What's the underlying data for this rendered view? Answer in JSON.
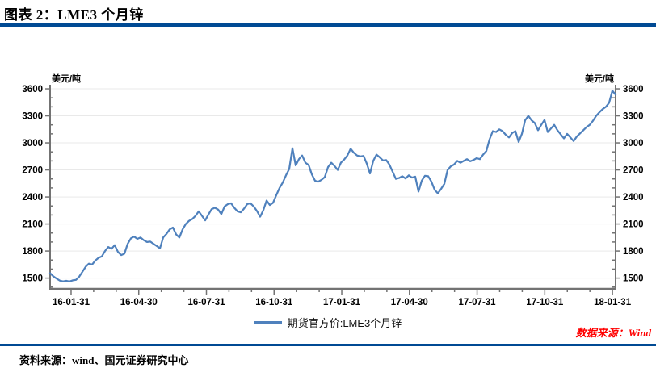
{
  "page": {
    "title": "图表 2：LME3 个月锌",
    "source_note_right": "数据来源：Wind",
    "source_note_bottom": "资料来源：wind、国元证券研究中心"
  },
  "colors": {
    "accent_rule": "#004a94",
    "series_line": "#4f81bd",
    "source_red": "#ff0000",
    "axis": "#737373",
    "gridline": "#e9e9e9",
    "tick_label": "#000000"
  },
  "chart_data": {
    "type": "line",
    "title": "",
    "unit_label_left": "美元/吨",
    "unit_label_right": "美元/吨",
    "grid": "horizontal-major",
    "legend_position": "bottom-center",
    "y_axis": {
      "min": 1380,
      "max": 3645,
      "major_ticks": [
        1500,
        1800,
        2100,
        2400,
        2700,
        3000,
        3300,
        3600
      ],
      "minor_step": 100,
      "mirrored_right": true
    },
    "x_axis": {
      "domain_months": [
        -0.93,
        24.14
      ],
      "minor_step_months": 1,
      "labels": [
        "16-01-31",
        "16-04-30",
        "16-07-31",
        "16-10-31",
        "17-01-31",
        "17-04-30",
        "17-07-31",
        "17-10-31",
        "18-01-31"
      ],
      "label_positions_months": [
        0,
        3,
        6,
        9,
        12,
        15,
        18,
        21,
        24
      ]
    },
    "series": [
      {
        "name": "期货官方价:LME3个月锌",
        "color": "#4f81bd",
        "x_uniform_over_domain": true,
        "values": [
          1555,
          1520,
          1495,
          1472,
          1463,
          1470,
          1462,
          1475,
          1480,
          1515,
          1570,
          1625,
          1660,
          1650,
          1695,
          1725,
          1740,
          1800,
          1845,
          1825,
          1865,
          1790,
          1755,
          1770,
          1880,
          1940,
          1960,
          1935,
          1950,
          1920,
          1900,
          1905,
          1880,
          1855,
          1830,
          1950,
          1990,
          2040,
          2060,
          1985,
          1950,
          2040,
          2100,
          2135,
          2155,
          2190,
          2240,
          2190,
          2140,
          2205,
          2265,
          2280,
          2260,
          2210,
          2295,
          2320,
          2330,
          2280,
          2240,
          2230,
          2270,
          2320,
          2330,
          2295,
          2245,
          2180,
          2255,
          2360,
          2310,
          2335,
          2420,
          2500,
          2560,
          2640,
          2710,
          2940,
          2750,
          2820,
          2860,
          2780,
          2755,
          2650,
          2580,
          2570,
          2590,
          2620,
          2730,
          2780,
          2745,
          2700,
          2780,
          2815,
          2860,
          2935,
          2890,
          2860,
          2850,
          2855,
          2770,
          2660,
          2800,
          2870,
          2840,
          2805,
          2810,
          2760,
          2680,
          2600,
          2610,
          2630,
          2605,
          2640,
          2615,
          2625,
          2460,
          2580,
          2635,
          2630,
          2570,
          2480,
          2440,
          2490,
          2545,
          2700,
          2740,
          2760,
          2800,
          2780,
          2800,
          2820,
          2795,
          2810,
          2830,
          2820,
          2870,
          2910,
          3040,
          3130,
          3120,
          3150,
          3130,
          3090,
          3060,
          3110,
          3130,
          3010,
          3100,
          3250,
          3300,
          3250,
          3220,
          3140,
          3200,
          3255,
          3120,
          3160,
          3200,
          3140,
          3095,
          3050,
          3100,
          3060,
          3020,
          3070,
          3105,
          3140,
          3175,
          3200,
          3245,
          3300,
          3340,
          3375,
          3400,
          3445,
          3580,
          3535
        ]
      }
    ]
  }
}
